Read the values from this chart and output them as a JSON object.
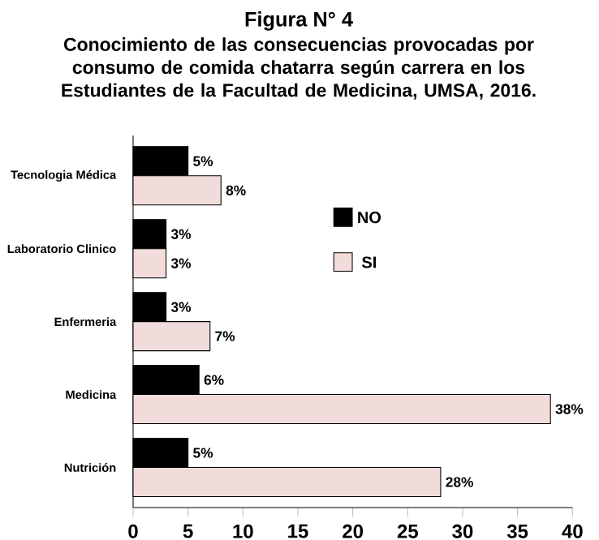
{
  "chart_data": {
    "type": "bar",
    "orientation": "horizontal",
    "title": "Figura  N° 4",
    "subtitle": "Conocimiento de las consecuencias provocadas por consumo de comida chatarra según carrera en los Estudiantes de la Facultad de Medicina, UMSA, 2016.",
    "categories": [
      "Tecnologia Médica",
      "Laboratorio Clinico",
      "Enfermeria",
      "Medicina",
      "Nutrición"
    ],
    "series": [
      {
        "name": "NO",
        "color": "#000000",
        "values": [
          5,
          3,
          3,
          6,
          5
        ],
        "value_labels": [
          "5%",
          "3%",
          "3%",
          "6%",
          "5%"
        ]
      },
      {
        "name": "SI",
        "color": "#f2dcdb",
        "values": [
          8,
          3,
          7,
          38,
          28
        ],
        "value_labels": [
          "8%",
          "3%",
          "7%",
          "38%",
          "28%"
        ]
      }
    ],
    "xlim": [
      0,
      40
    ],
    "xticks": [
      0,
      5,
      10,
      15,
      20,
      25,
      30,
      35,
      40
    ],
    "legend": "top right"
  }
}
